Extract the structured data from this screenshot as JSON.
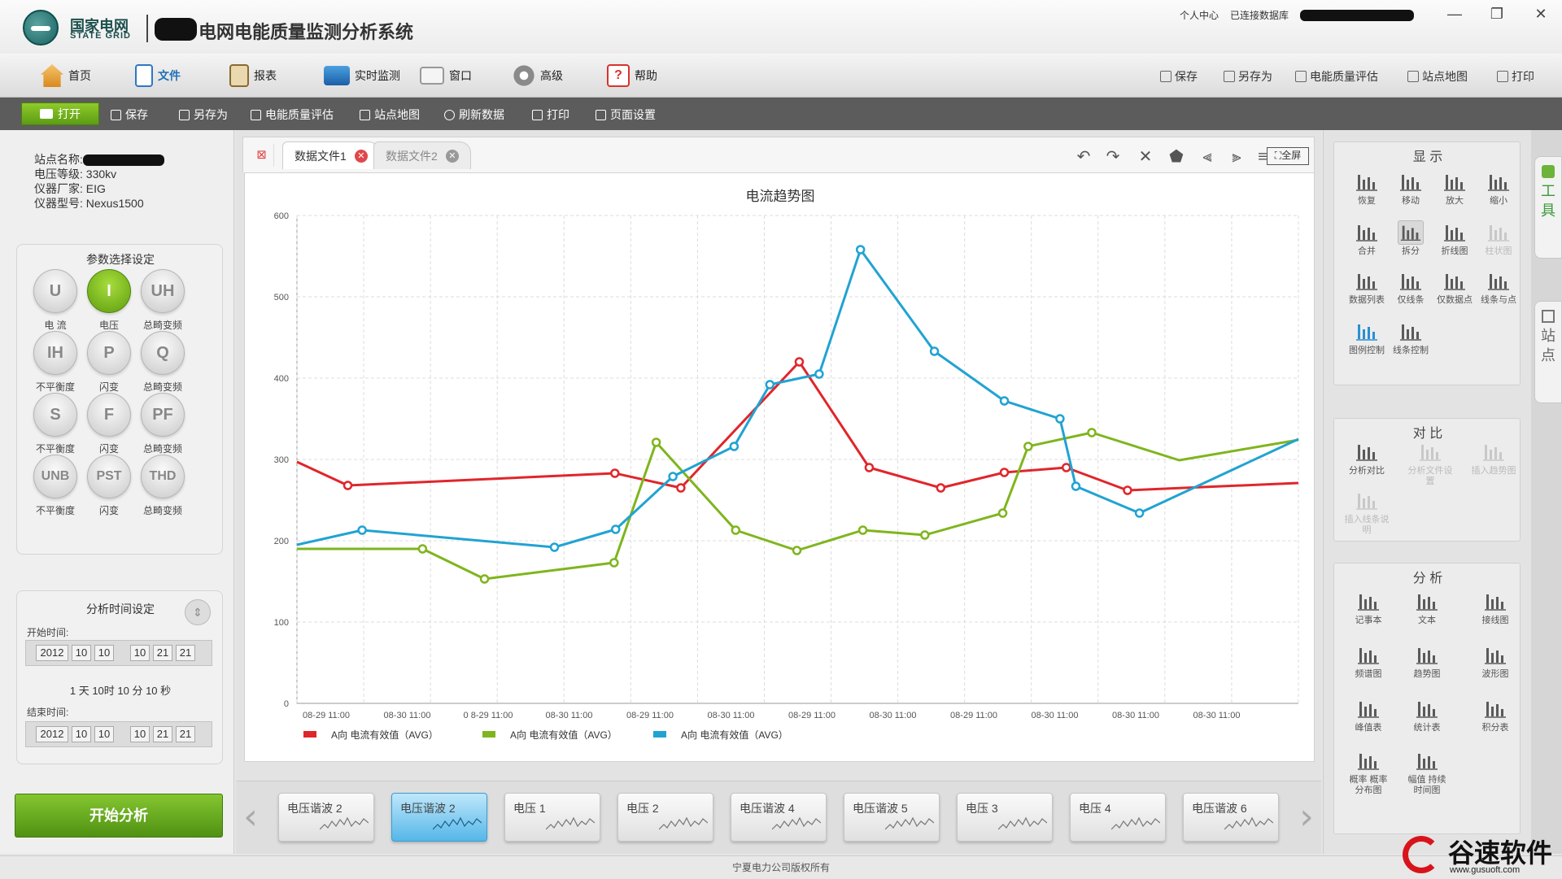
{
  "app": {
    "brand_cn": "国家电网",
    "brand_en": "STATE GRID",
    "title": "电网电能质量监测分析系统",
    "user_center": "个人中心",
    "db_status": "已连接数据库"
  },
  "window_controls": {
    "minimize": "—",
    "restore": "❐",
    "close": "✕"
  },
  "menu": {
    "items": [
      {
        "label": "首页",
        "icon": "home-icon",
        "color": "#e8a23a"
      },
      {
        "label": "文件",
        "icon": "file-icon",
        "color": "#2d78c4",
        "active": true
      },
      {
        "label": "报表",
        "icon": "report-icon",
        "color": "#c8a060"
      },
      {
        "label": "实时监测",
        "icon": "monitor-icon",
        "color": "#2c6fb8"
      },
      {
        "label": "窗口",
        "icon": "window-icon",
        "color": "#b9b9b9"
      },
      {
        "label": "高级",
        "icon": "gear-icon",
        "color": "#888888"
      },
      {
        "label": "帮助",
        "icon": "help-icon",
        "color": "#d9332b"
      }
    ],
    "right_items": [
      "保存",
      "另存为",
      "电能质量评估",
      "站点地图",
      "打印"
    ]
  },
  "toolbar": {
    "open_label": "打开",
    "items": [
      "保存",
      "另存为",
      "电能质量评估",
      "站点地图",
      "刷新数据",
      "打印",
      "页面设置"
    ]
  },
  "station": {
    "name_label": "站点名称:",
    "voltage_level": "电压等级: 330kv",
    "manufacturer": "仪器厂家: EIG",
    "model": "仪器型号: Nexus1500"
  },
  "params": {
    "title": "参数选择设定",
    "buttons": [
      {
        "code": "U",
        "label": "电 流"
      },
      {
        "code": "I",
        "label": "电压",
        "active": true
      },
      {
        "code": "UH",
        "label": "总畸变频"
      },
      {
        "code": "IH",
        "label": "不平衡度"
      },
      {
        "code": "P",
        "label": "闪变"
      },
      {
        "code": "Q",
        "label": "总畸变频"
      },
      {
        "code": "S",
        "label": "不平衡度"
      },
      {
        "code": "F",
        "label": "闪变"
      },
      {
        "code": "PF",
        "label": "总畸变频"
      },
      {
        "code": "UNB",
        "label": "不平衡度"
      },
      {
        "code": "PST",
        "label": "闪变"
      },
      {
        "code": "THD",
        "label": "总畸变频"
      }
    ]
  },
  "analysis_time": {
    "title": "分析时间设定",
    "start_label": "开始时间:",
    "start": [
      "2012",
      "10",
      "10",
      "10",
      "21",
      "21"
    ],
    "duration": "1 天 10时 10 分 10 秒",
    "end_label": "结束时间:",
    "end": [
      "2012",
      "10",
      "10",
      "10",
      "21",
      "21"
    ]
  },
  "start_button": "开始分析",
  "tabs": [
    {
      "label": "数据文件1",
      "active": true
    },
    {
      "label": "数据文件2",
      "active": false
    }
  ],
  "chart_controls": {
    "icons": [
      "undo-icon",
      "redo-icon",
      "delete-icon",
      "tag-icon",
      "align-left-icon",
      "align-right-icon",
      "align-center-icon"
    ],
    "fullscreen_label": "全屏"
  },
  "chart_data": {
    "type": "line",
    "title": "电流趋势图",
    "ylim": [
      0,
      600
    ],
    "yticks": [
      0,
      100,
      200,
      300,
      400,
      500,
      600
    ],
    "xtick_labels": [
      "08-29  11:00",
      "08-30  11:00",
      "0 8-29  11:00",
      "08-30  11:00",
      "08-29  11:00",
      "08-30  11:00",
      "08-29  11:00",
      "08-30  11:00",
      "08-29  11:00",
      "08-30  11:00",
      "08-30  11:00",
      "08-30  11:00"
    ],
    "x_range": [
      0,
      12.6
    ],
    "grid": true,
    "legend_position": "bottom-left",
    "series": [
      {
        "name": "A向  电流有效值（AVG）",
        "color": "#e0262b",
        "points": [
          [
            0.0,
            297
          ],
          [
            0.64,
            268
          ],
          [
            4.0,
            283
          ],
          [
            4.83,
            265
          ],
          [
            6.32,
            420
          ],
          [
            7.2,
            290
          ],
          [
            8.1,
            265
          ],
          [
            8.9,
            284
          ],
          [
            9.68,
            290
          ],
          [
            10.45,
            262
          ],
          [
            12.6,
            271
          ]
        ],
        "markers": [
          1,
          2,
          3,
          4,
          5,
          6,
          7,
          8,
          9
        ]
      },
      {
        "name": "A向  电流有效值（AVG）",
        "color": "#7fb51d",
        "points": [
          [
            0.0,
            190
          ],
          [
            1.58,
            190
          ],
          [
            2.36,
            153
          ],
          [
            3.99,
            173
          ],
          [
            4.52,
            321
          ],
          [
            5.52,
            213
          ],
          [
            6.29,
            188
          ],
          [
            7.12,
            213
          ],
          [
            7.9,
            207
          ],
          [
            8.88,
            234
          ],
          [
            9.2,
            316
          ],
          [
            10.0,
            333
          ],
          [
            11.1,
            299
          ],
          [
            12.6,
            324
          ]
        ],
        "markers": [
          1,
          2,
          3,
          4,
          5,
          6,
          7,
          8,
          9,
          10,
          11
        ]
      },
      {
        "name": "A向  电流有效值（AVG）",
        "color": "#21a3d2",
        "points": [
          [
            0.0,
            195
          ],
          [
            0.82,
            213
          ],
          [
            3.24,
            192
          ],
          [
            4.01,
            214
          ],
          [
            4.73,
            279
          ],
          [
            5.5,
            316
          ],
          [
            5.95,
            392
          ],
          [
            6.57,
            405
          ],
          [
            7.09,
            558
          ],
          [
            8.02,
            433
          ],
          [
            8.9,
            372
          ],
          [
            9.6,
            350
          ],
          [
            9.8,
            267
          ],
          [
            10.6,
            234
          ],
          [
            12.6,
            325
          ]
        ],
        "markers": [
          1,
          2,
          3,
          4,
          5,
          6,
          7,
          8,
          9,
          10,
          11,
          12,
          13
        ]
      }
    ]
  },
  "thumbnails": [
    {
      "label": "电压谐波 2"
    },
    {
      "label": "电压谐波 2",
      "active": true
    },
    {
      "label": "电压 1"
    },
    {
      "label": "电压 2"
    },
    {
      "label": "电压谐波 4"
    },
    {
      "label": "电压谐波 5"
    },
    {
      "label": "电压 3"
    },
    {
      "label": "电压 4"
    },
    {
      "label": "电压谐波 6"
    }
  ],
  "right_panel": {
    "display": {
      "title": "显 示",
      "tools": [
        {
          "label": "恢复",
          "icon": "reset-icon"
        },
        {
          "label": "移动",
          "icon": "move-icon"
        },
        {
          "label": "放大",
          "icon": "zoom-in-icon"
        },
        {
          "label": "缩小",
          "icon": "zoom-out-icon"
        },
        {
          "label": "合并",
          "icon": "merge-icon"
        },
        {
          "label": "拆分",
          "icon": "split-icon",
          "selected": true
        },
        {
          "label": "折线图",
          "icon": "line-chart-icon"
        },
        {
          "label": "柱状图",
          "icon": "bar-chart-icon",
          "disabled": true
        },
        {
          "label": "数据列表",
          "icon": "data-list-icon"
        },
        {
          "label": "仅线条",
          "icon": "line-only-icon"
        },
        {
          "label": "仅数据点",
          "icon": "points-only-icon"
        },
        {
          "label": "线条与点",
          "icon": "line-points-icon"
        },
        {
          "label": "图例控制",
          "icon": "legend-control-icon"
        },
        {
          "label": "线条控制",
          "icon": "line-control-icon"
        }
      ]
    },
    "compare": {
      "title": "对 比",
      "tools": [
        {
          "label": "分析对比",
          "icon": "compare-icon"
        },
        {
          "label": "分析文件设置",
          "icon": "file-settings-icon",
          "disabled": true
        },
        {
          "label": "插入趋势图",
          "icon": "insert-trend-icon",
          "disabled": true
        },
        {
          "label": "插入线条说明",
          "icon": "insert-note-icon",
          "disabled": true
        }
      ]
    },
    "analysis": {
      "title": "分 析",
      "tools": [
        {
          "label": "记事本",
          "icon": "notepad-icon"
        },
        {
          "label": "文本",
          "icon": "text-icon"
        },
        {
          "label": "接线图",
          "icon": "wiring-icon"
        },
        {
          "label": "频谱图",
          "icon": "spectrum-icon"
        },
        {
          "label": "趋势图",
          "icon": "trend-icon"
        },
        {
          "label": "波形图",
          "icon": "waveform-icon"
        },
        {
          "label": "峰值表",
          "icon": "peak-table-icon"
        },
        {
          "label": "统计表",
          "icon": "stats-table-icon"
        },
        {
          "label": "积分表",
          "icon": "integral-table-icon"
        },
        {
          "label": "概率 概率分布图",
          "icon": "probability-icon"
        },
        {
          "label": "幅值 持续时间图",
          "icon": "amplitude-duration-icon"
        }
      ]
    }
  },
  "side_tabs": {
    "tools": "工具",
    "station": "站点"
  },
  "footer": "宁夏电力公司版权所有",
  "watermark": {
    "name": "谷速软件",
    "url": "www.gusuoft.com"
  }
}
